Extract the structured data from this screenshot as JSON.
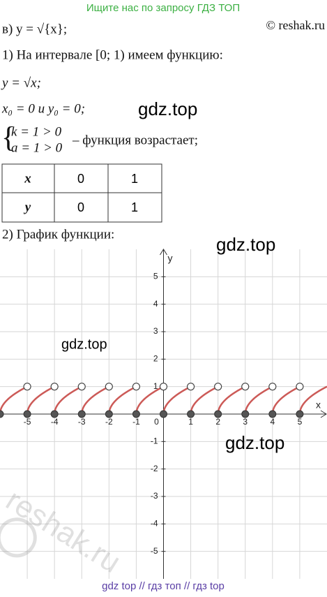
{
  "banner": "Ищите нас по запросу ГДЗ ТОП",
  "site": "© reshak.ru",
  "lines": [
    "в) y = √{x};",
    "1) На интервале [0; 1) имеем функцию:",
    "y = √x;",
    "x₀ = 0  и  y₀ = 0;"
  ],
  "system": [
    "k = 1 > 0",
    "a = 1 > 0"
  ],
  "system_note": "– функция возрастает;",
  "table": {
    "rows": [
      [
        "x",
        "0",
        "1"
      ],
      [
        "y",
        "0",
        "1"
      ]
    ]
  },
  "graph_heading": "2) График функции:",
  "watermarks": [
    "gdz.top",
    "gdz.top",
    "gdz.top",
    "gdz.top"
  ],
  "reshak_watermark": "reshak.ru",
  "footer": "gdz top  //  гдз топ  //  гдз top",
  "chart_data": {
    "type": "function",
    "function": "sqrt(frac(x))",
    "x_label": "x",
    "y_label": "y",
    "origin_label": "0",
    "xlim": [
      -6,
      6
    ],
    "ylim": [
      -6,
      6
    ],
    "xticks": [
      -5,
      -4,
      -3,
      -2,
      -1,
      1,
      2,
      3,
      4,
      5
    ],
    "yticks": [
      -5,
      -4,
      -3,
      -2,
      -1,
      1,
      2,
      3,
      4,
      5
    ],
    "grid": true,
    "color": "#cc5a57"
  }
}
